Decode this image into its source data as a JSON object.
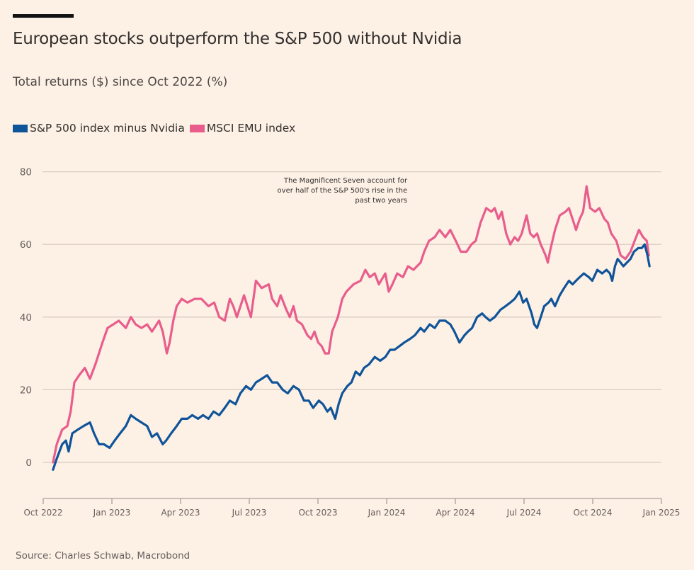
{
  "chart_data": {
    "type": "line",
    "title": "European stocks outperform the S&P 500 without Nvidia",
    "subtitle": "Total returns ($) since Oct 2022 (%)",
    "xlabel": "",
    "ylabel": "",
    "x_unit": "months since Oct 2022",
    "xlim": [
      0,
      27
    ],
    "ylim": [
      -10,
      80
    ],
    "yticks": [
      0,
      20,
      40,
      60,
      80
    ],
    "xticks": [
      {
        "value": 0,
        "label": "Oct 2022"
      },
      {
        "value": 3,
        "label": "Jan 2023"
      },
      {
        "value": 6,
        "label": "Apr 2023"
      },
      {
        "value": 9,
        "label": "Jul 2023"
      },
      {
        "value": 12,
        "label": "Oct 2023"
      },
      {
        "value": 15,
        "label": "Jan 2024"
      },
      {
        "value": 18,
        "label": "Apr 2024"
      },
      {
        "value": 21,
        "label": "Jul 2024"
      },
      {
        "value": 24,
        "label": "Oct 2024"
      },
      {
        "value": 27,
        "label": "Jan 2025"
      }
    ],
    "grid": true,
    "legend_position": "top-left",
    "annotation": {
      "lines": [
        "The Magnificent Seven account for",
        "over half of the S&P 500's rise in the",
        "past two years"
      ],
      "x": 15.9,
      "y": 77
    },
    "series": [
      {
        "name": "S&P 500 index minus Nvidia",
        "color": "#0f5499",
        "points": [
          [
            0.43,
            -2
          ],
          [
            0.59,
            1
          ],
          [
            0.83,
            5
          ],
          [
            0.99,
            6
          ],
          [
            1.11,
            3
          ],
          [
            1.27,
            8
          ],
          [
            1.51,
            9
          ],
          [
            1.76,
            10
          ],
          [
            2.04,
            11
          ],
          [
            2.22,
            8
          ],
          [
            2.44,
            5
          ],
          [
            2.65,
            5
          ],
          [
            2.9,
            4
          ],
          [
            3.12,
            6
          ],
          [
            3.36,
            8
          ],
          [
            3.61,
            10
          ],
          [
            3.83,
            13
          ],
          [
            4.04,
            12
          ],
          [
            4.29,
            11
          ],
          [
            4.54,
            10
          ],
          [
            4.75,
            7
          ],
          [
            4.97,
            8
          ],
          [
            5.22,
            5
          ],
          [
            5.37,
            6
          ],
          [
            5.59,
            8
          ],
          [
            5.83,
            10
          ],
          [
            6.05,
            12
          ],
          [
            6.3,
            12
          ],
          [
            6.51,
            13
          ],
          [
            6.76,
            12
          ],
          [
            6.98,
            13
          ],
          [
            7.22,
            12
          ],
          [
            7.44,
            14
          ],
          [
            7.69,
            13
          ],
          [
            7.93,
            15
          ],
          [
            8.15,
            17
          ],
          [
            8.4,
            16
          ],
          [
            8.61,
            19
          ],
          [
            8.86,
            21
          ],
          [
            9.07,
            20
          ],
          [
            9.29,
            22
          ],
          [
            9.54,
            23
          ],
          [
            9.78,
            24
          ],
          [
            10,
            22
          ],
          [
            10.22,
            22
          ],
          [
            10.46,
            20
          ],
          [
            10.68,
            19
          ],
          [
            10.93,
            21
          ],
          [
            11.17,
            20
          ],
          [
            11.39,
            17
          ],
          [
            11.6,
            17
          ],
          [
            11.79,
            15
          ],
          [
            12.04,
            17
          ],
          [
            12.22,
            16
          ],
          [
            12.41,
            14
          ],
          [
            12.56,
            15
          ],
          [
            12.75,
            12
          ],
          [
            12.9,
            16
          ],
          [
            13.06,
            19
          ],
          [
            13.28,
            21
          ],
          [
            13.46,
            22
          ],
          [
            13.65,
            25
          ],
          [
            13.83,
            24
          ],
          [
            14.01,
            26
          ],
          [
            14.23,
            27
          ],
          [
            14.48,
            29
          ],
          [
            14.72,
            28
          ],
          [
            14.94,
            29
          ],
          [
            15.15,
            31
          ],
          [
            15.34,
            31
          ],
          [
            15.56,
            32
          ],
          [
            15.77,
            33
          ],
          [
            16.02,
            34
          ],
          [
            16.23,
            35
          ],
          [
            16.48,
            37
          ],
          [
            16.64,
            36
          ],
          [
            16.88,
            38
          ],
          [
            17.1,
            37
          ],
          [
            17.31,
            39
          ],
          [
            17.56,
            39
          ],
          [
            17.78,
            38
          ],
          [
            17.96,
            36
          ],
          [
            18.18,
            33
          ],
          [
            18.4,
            35
          ],
          [
            18.55,
            36
          ],
          [
            18.73,
            37
          ],
          [
            18.95,
            40
          ],
          [
            19.17,
            41
          ],
          [
            19.32,
            40
          ],
          [
            19.51,
            39
          ],
          [
            19.72,
            40
          ],
          [
            19.97,
            42
          ],
          [
            20.19,
            43
          ],
          [
            20.4,
            44
          ],
          [
            20.59,
            45
          ],
          [
            20.8,
            47
          ],
          [
            20.96,
            44
          ],
          [
            21.11,
            45
          ],
          [
            21.33,
            41
          ],
          [
            21.45,
            38
          ],
          [
            21.57,
            37
          ],
          [
            21.73,
            40
          ],
          [
            21.88,
            43
          ],
          [
            22.07,
            44
          ],
          [
            22.19,
            45
          ],
          [
            22.35,
            43
          ],
          [
            22.56,
            46
          ],
          [
            22.75,
            48
          ],
          [
            22.96,
            50
          ],
          [
            23.12,
            49
          ],
          [
            23.27,
            50
          ],
          [
            23.43,
            51
          ],
          [
            23.61,
            52
          ],
          [
            23.83,
            51
          ],
          [
            23.98,
            50
          ],
          [
            24.2,
            53
          ],
          [
            24.41,
            52
          ],
          [
            24.6,
            53
          ],
          [
            24.75,
            52
          ],
          [
            24.85,
            50
          ],
          [
            24.97,
            54
          ],
          [
            25.09,
            56
          ],
          [
            25.22,
            55
          ],
          [
            25.34,
            54
          ],
          [
            25.49,
            55
          ],
          [
            25.65,
            56
          ],
          [
            25.8,
            58
          ],
          [
            25.99,
            59
          ],
          [
            26.14,
            59
          ],
          [
            26.27,
            60
          ],
          [
            26.39,
            57
          ],
          [
            26.48,
            54
          ]
        ]
      },
      {
        "name": "MSCI EMU index",
        "color": "#e95d8c",
        "points": [
          [
            0.43,
            0
          ],
          [
            0.59,
            5
          ],
          [
            0.83,
            9
          ],
          [
            1.05,
            10
          ],
          [
            1.2,
            14
          ],
          [
            1.36,
            22
          ],
          [
            1.57,
            24
          ],
          [
            1.82,
            26
          ],
          [
            2.04,
            23
          ],
          [
            2.28,
            27
          ],
          [
            2.59,
            33
          ],
          [
            2.81,
            37
          ],
          [
            3.06,
            38
          ],
          [
            3.3,
            39
          ],
          [
            3.61,
            37
          ],
          [
            3.83,
            40
          ],
          [
            4.04,
            38
          ],
          [
            4.29,
            37
          ],
          [
            4.54,
            38
          ],
          [
            4.75,
            36
          ],
          [
            5.06,
            39
          ],
          [
            5.22,
            36
          ],
          [
            5.4,
            30
          ],
          [
            5.52,
            33
          ],
          [
            5.68,
            39
          ],
          [
            5.83,
            43
          ],
          [
            6.05,
            45
          ],
          [
            6.3,
            44
          ],
          [
            6.61,
            45
          ],
          [
            6.91,
            45
          ],
          [
            7.22,
            43
          ],
          [
            7.47,
            44
          ],
          [
            7.69,
            40
          ],
          [
            7.93,
            39
          ],
          [
            8.15,
            45
          ],
          [
            8.3,
            43
          ],
          [
            8.46,
            40
          ],
          [
            8.77,
            46
          ],
          [
            8.92,
            43
          ],
          [
            9.07,
            40
          ],
          [
            9.29,
            50
          ],
          [
            9.54,
            48
          ],
          [
            9.85,
            49
          ],
          [
            10,
            45
          ],
          [
            10.22,
            43
          ],
          [
            10.37,
            46
          ],
          [
            10.62,
            42
          ],
          [
            10.77,
            40
          ],
          [
            10.93,
            43
          ],
          [
            11.08,
            39
          ],
          [
            11.3,
            38
          ],
          [
            11.54,
            35
          ],
          [
            11.7,
            34
          ],
          [
            11.85,
            36
          ],
          [
            12.01,
            33
          ],
          [
            12.16,
            32
          ],
          [
            12.31,
            30
          ],
          [
            12.47,
            30
          ],
          [
            12.62,
            36
          ],
          [
            12.87,
            40
          ],
          [
            13.06,
            45
          ],
          [
            13.24,
            47
          ],
          [
            13.55,
            49
          ],
          [
            13.86,
            50
          ],
          [
            14.07,
            53
          ],
          [
            14.26,
            51
          ],
          [
            14.48,
            52
          ],
          [
            14.66,
            49
          ],
          [
            14.94,
            52
          ],
          [
            15.09,
            47
          ],
          [
            15.25,
            49
          ],
          [
            15.46,
            52
          ],
          [
            15.71,
            51
          ],
          [
            15.93,
            54
          ],
          [
            16.17,
            53
          ],
          [
            16.48,
            55
          ],
          [
            16.64,
            58
          ],
          [
            16.85,
            61
          ],
          [
            17.1,
            62
          ],
          [
            17.31,
            64
          ],
          [
            17.56,
            62
          ],
          [
            17.78,
            64
          ],
          [
            18.02,
            61
          ],
          [
            18.24,
            58
          ],
          [
            18.49,
            58
          ],
          [
            18.7,
            60
          ],
          [
            18.89,
            61
          ],
          [
            19.1,
            66
          ],
          [
            19.35,
            70
          ],
          [
            19.57,
            69
          ],
          [
            19.72,
            70
          ],
          [
            19.88,
            67
          ],
          [
            20.03,
            69
          ],
          [
            20.22,
            63
          ],
          [
            20.4,
            60
          ],
          [
            20.59,
            62
          ],
          [
            20.74,
            61
          ],
          [
            20.9,
            63
          ],
          [
            21.11,
            68
          ],
          [
            21.27,
            63
          ],
          [
            21.42,
            62
          ],
          [
            21.57,
            63
          ],
          [
            21.73,
            60
          ],
          [
            21.94,
            57
          ],
          [
            22.04,
            55
          ],
          [
            22.13,
            58
          ],
          [
            22.35,
            64
          ],
          [
            22.56,
            68
          ],
          [
            22.81,
            69
          ],
          [
            22.96,
            70
          ],
          [
            23.12,
            67
          ],
          [
            23.27,
            64
          ],
          [
            23.43,
            67
          ],
          [
            23.58,
            69
          ],
          [
            23.73,
            76
          ],
          [
            23.89,
            70
          ],
          [
            24.1,
            69
          ],
          [
            24.29,
            70
          ],
          [
            24.51,
            67
          ],
          [
            24.66,
            66
          ],
          [
            24.81,
            63
          ],
          [
            25.03,
            61
          ],
          [
            25.22,
            57
          ],
          [
            25.43,
            56
          ],
          [
            25.65,
            58
          ],
          [
            25.83,
            61
          ],
          [
            26.02,
            64
          ],
          [
            26.2,
            62
          ],
          [
            26.36,
            61
          ],
          [
            26.45,
            57
          ]
        ]
      }
    ],
    "legend": [
      {
        "label": "S&P 500 index minus Nvidia",
        "color": "#0f5499"
      },
      {
        "label": "MSCI EMU index",
        "color": "#e95d8c"
      }
    ],
    "source": "Source: Charles Schwab, Macrobond"
  }
}
